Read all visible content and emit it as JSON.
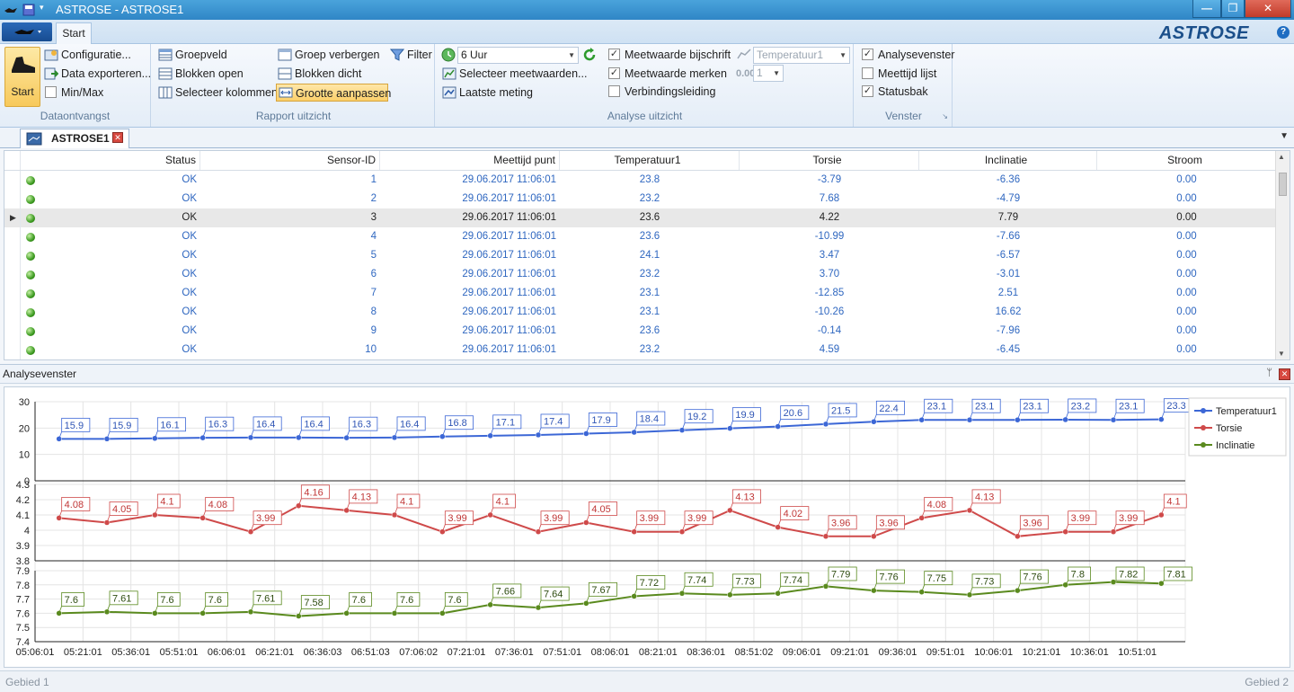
{
  "window": {
    "title": "ASTROSE - ASTROSE1",
    "buttons": [
      "—",
      "❐",
      "✕"
    ]
  },
  "tabs": {
    "start": "Start"
  },
  "logo": "ASTROSE",
  "ribbon": {
    "dataontvangst": {
      "title": "Dataontvangst",
      "start_label": "Start",
      "configuratie": "Configuratie...",
      "data_exporteren": "Data exporteren...",
      "minmax": "Min/Max",
      "minmax_checked": false
    },
    "rapport": {
      "title": "Rapport uitzicht",
      "groepveld": "Groepveld",
      "blokken_open": "Blokken open",
      "selecteer_kolommen": "Selecteer kolommen",
      "groep_verbergen": "Groep verbergen",
      "blokken_dicht": "Blokken dicht",
      "grootte_aanpassen": "Grootte aanpassen",
      "filter": "Filter"
    },
    "analyse": {
      "title": "Analyse uitzicht",
      "period_value": "6 Uur",
      "selecteer_meetwaarden": "Selecteer meetwaarden...",
      "laatste_meting": "Laatste meting",
      "meetwaarde_bijschrift": "Meetwaarde bijschrift",
      "meetwaarde_merken": "Meetwaarde merken",
      "verbindingsleiding": "Verbindingsleiding",
      "checks": [
        true,
        true,
        false
      ],
      "series_select": "Temperatuur1",
      "decimals_select": "1"
    },
    "venster": {
      "title": "Venster",
      "analysevenster": "Analysevenster",
      "meettijd_lijst": "Meettijd lijst",
      "statusbak": "Statusbak",
      "checks": [
        true,
        false,
        true
      ]
    }
  },
  "document_tab": "ASTROSE1",
  "grid": {
    "columns": [
      "Status",
      "Sensor-ID",
      "Meettijd punt",
      "Temperatuur1",
      "Torsie",
      "Inclinatie",
      "Stroom"
    ],
    "selected_row": 2,
    "rows": [
      [
        "OK",
        "1",
        "29.06.2017 11:06:01",
        "23.8",
        "-3.79",
        "-6.36",
        "0.00"
      ],
      [
        "OK",
        "2",
        "29.06.2017 11:06:01",
        "23.2",
        "7.68",
        "-4.79",
        "0.00"
      ],
      [
        "OK",
        "3",
        "29.06.2017 11:06:01",
        "23.6",
        "4.22",
        "7.79",
        "0.00"
      ],
      [
        "OK",
        "4",
        "29.06.2017 11:06:01",
        "23.6",
        "-10.99",
        "-7.66",
        "0.00"
      ],
      [
        "OK",
        "5",
        "29.06.2017 11:06:01",
        "24.1",
        "3.47",
        "-6.57",
        "0.00"
      ],
      [
        "OK",
        "6",
        "29.06.2017 11:06:01",
        "23.2",
        "3.70",
        "-3.01",
        "0.00"
      ],
      [
        "OK",
        "7",
        "29.06.2017 11:06:01",
        "23.1",
        "-12.85",
        "2.51",
        "0.00"
      ],
      [
        "OK",
        "8",
        "29.06.2017 11:06:01",
        "23.1",
        "-10.26",
        "16.62",
        "0.00"
      ],
      [
        "OK",
        "9",
        "29.06.2017 11:06:01",
        "23.6",
        "-0.14",
        "-7.96",
        "0.00"
      ],
      [
        "OK",
        "10",
        "29.06.2017 11:06:01",
        "23.2",
        "4.59",
        "-6.45",
        "0.00"
      ]
    ]
  },
  "analyse_pane": {
    "title": "Analysevenster"
  },
  "chart_data": {
    "type": "line",
    "x": [
      "05:06:01",
      "05:21:01",
      "05:36:01",
      "05:51:01",
      "06:06:01",
      "06:21:01",
      "06:36:03",
      "06:51:03",
      "07:06:02",
      "07:21:01",
      "07:36:01",
      "07:51:01",
      "08:06:01",
      "08:21:01",
      "08:36:01",
      "08:51:02",
      "09:06:01",
      "09:21:01",
      "09:36:01",
      "09:51:01",
      "10:06:01",
      "10:21:01",
      "10:36:01",
      "10:51:01"
    ],
    "legend_position": "top-right",
    "grid": true,
    "series": [
      {
        "name": "Temperatuur1",
        "color": "#3c67d6",
        "label_color": "#2f55b5",
        "ylim": [
          0,
          30
        ],
        "yticks": [
          "0",
          "10",
          "20",
          "30"
        ],
        "values": [
          15.9,
          15.9,
          16.1,
          16.3,
          16.4,
          16.4,
          16.3,
          16.4,
          16.8,
          17.1,
          17.4,
          17.9,
          18.4,
          19.2,
          19.9,
          20.6,
          21.5,
          22.4,
          23.1,
          23.1,
          23.1,
          23.2,
          23.1,
          23.3
        ],
        "labels": [
          "15.9",
          "15.9",
          "16.1",
          "16.3",
          "16.4",
          "16.4",
          "16.3",
          "16.4",
          "16.8",
          "17.1",
          "17.4",
          "17.9",
          "18.4",
          "19.2",
          "19.9",
          "20.6",
          "21.5",
          "22.4",
          "23.1",
          "23.1",
          "23.1",
          "23.2",
          "23.1",
          "23.3"
        ]
      },
      {
        "name": "Torsie",
        "color": "#cf4a4a",
        "label_color": "#c03636",
        "ylim": [
          3.8,
          4.3
        ],
        "yticks": [
          "3.8",
          "3.9",
          "4",
          "4.1",
          "4.2",
          "4.3"
        ],
        "values": [
          4.08,
          4.05,
          4.1,
          4.08,
          3.99,
          4.16,
          4.13,
          4.1,
          3.99,
          4.1,
          3.99,
          4.05,
          3.99,
          3.99,
          4.13,
          4.02,
          3.96,
          3.96,
          4.08,
          4.13,
          3.96,
          3.99,
          3.99,
          4.1
        ],
        "labels": [
          "4.08",
          "4.05",
          "4.1",
          "4.08",
          "3.99",
          "4.16",
          "4.13",
          "4.1",
          "3.99",
          "4.1",
          "3.99",
          "4.05",
          "3.99",
          "3.99",
          "4.13",
          "4.02",
          "3.96",
          "3.96",
          "4.08",
          "4.13",
          "3.96",
          "3.99",
          "3.99",
          "4.1"
        ]
      },
      {
        "name": "Inclinatie",
        "color": "#5a8a1e",
        "label_color": "#2e4c10",
        "ylim": [
          7.4,
          7.9
        ],
        "yticks": [
          "7.4",
          "7.5",
          "7.6",
          "7.7",
          "7.8",
          "7.9"
        ],
        "values": [
          7.6,
          7.61,
          7.6,
          7.6,
          7.61,
          7.58,
          7.6,
          7.6,
          7.6,
          7.66,
          7.64,
          7.67,
          7.72,
          7.74,
          7.73,
          7.74,
          7.79,
          7.76,
          7.75,
          7.73,
          7.76,
          7.8,
          7.82,
          7.81
        ],
        "labels": [
          "7.6",
          "7.61",
          "7.6",
          "7.6",
          "7.61",
          "7.58",
          "7.6",
          "7.6",
          "7.6",
          "7.66",
          "7.64",
          "7.67",
          "7.72",
          "7.74",
          "7.73",
          "7.74",
          "7.79",
          "7.76",
          "7.75",
          "7.73",
          "7.76",
          "7.8",
          "7.82",
          "7.81"
        ]
      }
    ]
  },
  "statusbar": {
    "left": "Gebied 1",
    "right": "Gebied 2"
  }
}
